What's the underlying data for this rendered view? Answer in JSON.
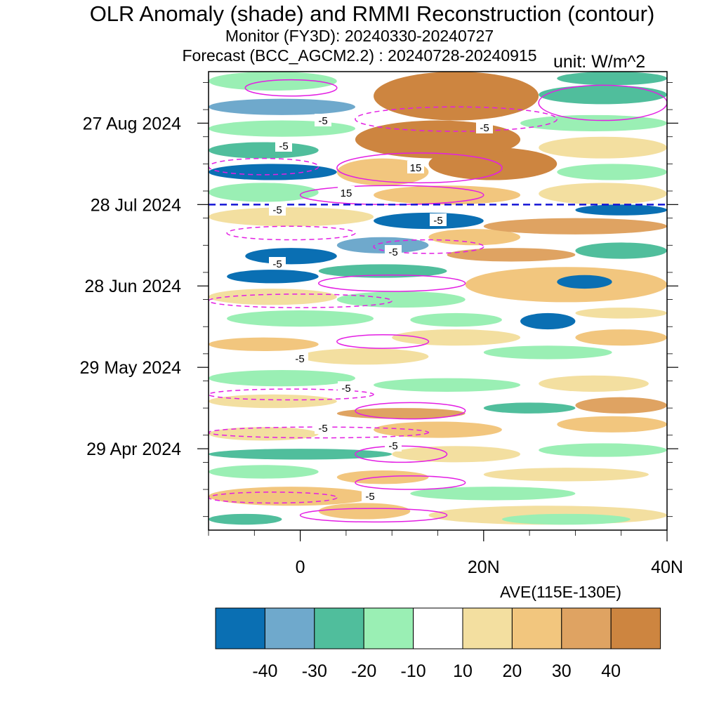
{
  "header": {
    "title": "OLR Anomaly (shade) and RMMI Reconstruction (contour)",
    "monitor": "Monitor (FY3D): 20240330-20240727",
    "forecast": "Forecast (BCC_AGCM2.2) : 20240728-20240915",
    "unit": "unit: W/m^2"
  },
  "footer": {
    "average": "AVE(115E-130E)"
  },
  "chart_data": {
    "type": "heatmap",
    "title": "OLR Anomaly (shade) and RMMI Reconstruction (contour)",
    "xlabel": "",
    "ylabel": "",
    "x_range": [
      "10S",
      "40N"
    ],
    "x_ticks": [
      "0",
      "20N",
      "40N"
    ],
    "y_range": [
      "2024-03-30",
      "2024-09-15"
    ],
    "y_ticks": [
      "29 Apr 2024",
      "29 May 2024",
      "28 Jun 2024",
      "28 Jul 2024",
      "27 Aug 2024"
    ],
    "forecast_start_line": "2024-07-28",
    "colorbar": {
      "levels": [
        "-40",
        "-30",
        "-20",
        "-10",
        "10",
        "20",
        "30",
        "40"
      ],
      "colors": [
        "#0a6fb3",
        "#6fa9cc",
        "#50be9c",
        "#9aefb4",
        "#ffffff",
        "#f3dfa0",
        "#f2c67e",
        "#dfa362",
        "#cd8540"
      ]
    },
    "contour_labels": [
      "-5",
      "-5",
      "-5",
      "15",
      "15",
      "-5",
      "-5",
      "-5",
      "-5",
      "-5",
      "-5",
      "-5",
      "-5",
      "-5"
    ],
    "contour_color": "#e31ee3",
    "regions": [
      {
        "x0": 14,
        "x1": 40,
        "y0": "2024-04-01",
        "y1": "2024-04-08",
        "v": 15
      },
      {
        "x0": 2,
        "x1": 12,
        "y0": "2024-04-03",
        "y1": "2024-04-09",
        "v": 20
      },
      {
        "x0": -10,
        "x1": -2,
        "y0": "2024-04-01",
        "y1": "2024-04-05",
        "v": -25
      },
      {
        "x0": 22,
        "x1": 36,
        "y0": "2024-04-01",
        "y1": "2024-04-05",
        "v": -15
      },
      {
        "x0": -10,
        "x1": 8,
        "y0": "2024-04-08",
        "y1": "2024-04-15",
        "v": 20
      },
      {
        "x0": 12,
        "x1": 30,
        "y0": "2024-04-10",
        "y1": "2024-04-15",
        "v": -15
      },
      {
        "x0": 4,
        "x1": 14,
        "y0": "2024-04-16",
        "y1": "2024-04-21",
        "v": 25
      },
      {
        "x0": -10,
        "x1": 2,
        "y0": "2024-04-18",
        "y1": "2024-04-23",
        "v": -15
      },
      {
        "x0": 20,
        "x1": 38,
        "y0": "2024-04-17",
        "y1": "2024-04-22",
        "v": 15
      },
      {
        "x0": -10,
        "x1": 10,
        "y0": "2024-04-25",
        "y1": "2024-04-29",
        "v": -25
      },
      {
        "x0": 10,
        "x1": 24,
        "y0": "2024-04-24",
        "y1": "2024-04-30",
        "v": 15
      },
      {
        "x0": 26,
        "x1": 40,
        "y0": "2024-04-26",
        "y1": "2024-05-01",
        "v": -15
      },
      {
        "x0": -10,
        "x1": 2,
        "y0": "2024-05-02",
        "y1": "2024-05-07",
        "v": 15
      },
      {
        "x0": 8,
        "x1": 22,
        "y0": "2024-05-03",
        "y1": "2024-05-09",
        "v": 22
      },
      {
        "x0": 28,
        "x1": 40,
        "y0": "2024-05-05",
        "y1": "2024-05-11",
        "v": 25
      },
      {
        "x0": 20,
        "x1": 30,
        "y0": "2024-05-12",
        "y1": "2024-05-16",
        "v": -25
      },
      {
        "x0": 4,
        "x1": 18,
        "y0": "2024-05-10",
        "y1": "2024-05-14",
        "v": 30
      },
      {
        "x0": 30,
        "x1": 40,
        "y0": "2024-05-12",
        "y1": "2024-05-18",
        "v": 35
      },
      {
        "x0": -10,
        "x1": 4,
        "y0": "2024-05-14",
        "y1": "2024-05-19",
        "v": 18
      },
      {
        "x0": 8,
        "x1": 24,
        "y0": "2024-05-20",
        "y1": "2024-05-25",
        "v": -20
      },
      {
        "x0": -10,
        "x1": 6,
        "y0": "2024-05-22",
        "y1": "2024-05-28",
        "v": -15
      },
      {
        "x0": 26,
        "x1": 38,
        "y0": "2024-05-20",
        "y1": "2024-05-26",
        "v": 15
      },
      {
        "x0": 0,
        "x1": 14,
        "y0": "2024-05-30",
        "y1": "2024-06-05",
        "v": 15
      },
      {
        "x0": 20,
        "x1": 34,
        "y0": "2024-06-01",
        "y1": "2024-06-06",
        "v": -15
      },
      {
        "x0": -10,
        "x1": 2,
        "y0": "2024-06-04",
        "y1": "2024-06-09",
        "v": 22
      },
      {
        "x0": 10,
        "x1": 24,
        "y0": "2024-06-06",
        "y1": "2024-06-12",
        "v": 15
      },
      {
        "x0": 30,
        "x1": 40,
        "y0": "2024-06-06",
        "y1": "2024-06-12",
        "v": 22
      },
      {
        "x0": -8,
        "x1": 8,
        "y0": "2024-06-13",
        "y1": "2024-06-19",
        "v": -20
      },
      {
        "x0": 24,
        "x1": 30,
        "y0": "2024-06-12",
        "y1": "2024-06-18",
        "v": -45
      },
      {
        "x0": 12,
        "x1": 22,
        "y0": "2024-06-13",
        "y1": "2024-06-18",
        "v": -15
      },
      {
        "x0": 30,
        "x1": 40,
        "y0": "2024-06-16",
        "y1": "2024-06-20",
        "v": 15
      },
      {
        "x0": -10,
        "x1": 4,
        "y0": "2024-06-21",
        "y1": "2024-06-27",
        "v": 15
      },
      {
        "x0": 4,
        "x1": 18,
        "y0": "2024-06-20",
        "y1": "2024-06-26",
        "v": -15
      },
      {
        "x0": 18,
        "x1": 40,
        "y0": "2024-06-22",
        "y1": "2024-07-05",
        "v": 25
      },
      {
        "x0": 28,
        "x1": 34,
        "y0": "2024-06-27",
        "y1": "2024-07-02",
        "v": -45
      },
      {
        "x0": -8,
        "x1": 2,
        "y0": "2024-06-29",
        "y1": "2024-07-04",
        "v": -45
      },
      {
        "x0": 2,
        "x1": 16,
        "y0": "2024-07-01",
        "y1": "2024-07-06",
        "v": -25
      },
      {
        "x0": 16,
        "x1": 30,
        "y0": "2024-07-07",
        "y1": "2024-07-12",
        "v": 35
      },
      {
        "x0": -6,
        "x1": 4,
        "y0": "2024-07-06",
        "y1": "2024-07-12",
        "v": -45
      },
      {
        "x0": 4,
        "x1": 14,
        "y0": "2024-07-10",
        "y1": "2024-07-16",
        "v": -35
      },
      {
        "x0": 30,
        "x1": 40,
        "y0": "2024-07-08",
        "y1": "2024-07-14",
        "v": -30
      },
      {
        "x0": 14,
        "x1": 24,
        "y0": "2024-07-13",
        "y1": "2024-07-19",
        "v": 25
      },
      {
        "x0": 8,
        "x1": 20,
        "y0": "2024-07-19",
        "y1": "2024-07-25",
        "v": -45
      },
      {
        "x0": 20,
        "x1": 40,
        "y0": "2024-07-17",
        "y1": "2024-07-23",
        "v": 30
      },
      {
        "x0": -10,
        "x1": 8,
        "y0": "2024-07-20",
        "y1": "2024-07-27",
        "v": 15
      },
      {
        "x0": 30,
        "x1": 40,
        "y0": "2024-07-24",
        "y1": "2024-07-28",
        "v": -45
      },
      {
        "x0": -10,
        "x1": 2,
        "y0": "2024-07-29",
        "y1": "2024-08-05",
        "v": -15
      },
      {
        "x0": 8,
        "x1": 24,
        "y0": "2024-07-28",
        "y1": "2024-08-04",
        "v": 25
      },
      {
        "x0": 26,
        "x1": 40,
        "y0": "2024-07-28",
        "y1": "2024-08-05",
        "v": 15
      },
      {
        "x0": -10,
        "x1": 4,
        "y0": "2024-08-06",
        "y1": "2024-08-12",
        "v": -45
      },
      {
        "x0": 4,
        "x1": 14,
        "y0": "2024-08-04",
        "y1": "2024-08-14",
        "v": 25
      },
      {
        "x0": 14,
        "x1": 28,
        "y0": "2024-08-06",
        "y1": "2024-08-18",
        "v": 45
      },
      {
        "x0": 28,
        "x1": 40,
        "y0": "2024-08-06",
        "y1": "2024-08-12",
        "v": -15
      },
      {
        "x0": 6,
        "x1": 24,
        "y0": "2024-08-14",
        "y1": "2024-08-28",
        "v": 45
      },
      {
        "x0": -10,
        "x1": 2,
        "y0": "2024-08-14",
        "y1": "2024-08-20",
        "v": -30
      },
      {
        "x0": 26,
        "x1": 40,
        "y0": "2024-08-14",
        "y1": "2024-08-22",
        "v": 15
      },
      {
        "x0": -10,
        "x1": 6,
        "y0": "2024-08-22",
        "y1": "2024-08-28",
        "v": -20
      },
      {
        "x0": 24,
        "x1": 40,
        "y0": "2024-08-24",
        "y1": "2024-08-30",
        "v": -20
      },
      {
        "x0": 8,
        "x1": 26,
        "y0": "2024-08-28",
        "y1": "2024-09-15",
        "v": 45
      },
      {
        "x0": -10,
        "x1": 6,
        "y0": "2024-08-30",
        "y1": "2024-09-05",
        "v": -35
      },
      {
        "x0": 26,
        "x1": 40,
        "y0": "2024-09-03",
        "y1": "2024-09-10",
        "v": -25
      },
      {
        "x0": -10,
        "x1": 4,
        "y0": "2024-09-08",
        "y1": "2024-09-15",
        "v": -15
      },
      {
        "x0": 28,
        "x1": 40,
        "y0": "2024-09-10",
        "y1": "2024-09-15",
        "v": -30
      }
    ],
    "contours": [
      {
        "x0": 0,
        "x1": 16,
        "y0": "2024-04-02",
        "y1": "2024-04-07",
        "dash": false
      },
      {
        "x0": 6,
        "x1": 18,
        "y0": "2024-04-14",
        "y1": "2024-04-19",
        "dash": false
      },
      {
        "x0": -10,
        "x1": 4,
        "y0": "2024-04-09",
        "y1": "2024-04-13",
        "dash": true
      },
      {
        "x0": 6,
        "x1": 16,
        "y0": "2024-04-24",
        "y1": "2024-04-30",
        "dash": false
      },
      {
        "x0": -10,
        "x1": 14,
        "y0": "2024-05-03",
        "y1": "2024-05-07",
        "dash": true
      },
      {
        "x0": 6,
        "x1": 18,
        "y0": "2024-05-10",
        "y1": "2024-05-16",
        "dash": false
      },
      {
        "x0": -10,
        "x1": 8,
        "y0": "2024-05-17",
        "y1": "2024-05-21",
        "dash": true
      },
      {
        "x0": 4,
        "x1": 14,
        "y0": "2024-06-05",
        "y1": "2024-06-10",
        "dash": false
      },
      {
        "x0": -10,
        "x1": 10,
        "y0": "2024-06-20",
        "y1": "2024-06-25",
        "dash": true
      },
      {
        "x0": 2,
        "x1": 18,
        "y0": "2024-06-26",
        "y1": "2024-07-02",
        "dash": false
      },
      {
        "x0": 8,
        "x1": 20,
        "y0": "2024-07-10",
        "y1": "2024-07-15",
        "dash": true
      },
      {
        "x0": -8,
        "x1": 6,
        "y0": "2024-07-15",
        "y1": "2024-07-20",
        "dash": true
      },
      {
        "x0": 0,
        "x1": 20,
        "y0": "2024-07-28",
        "y1": "2024-08-04",
        "dash": false
      },
      {
        "x0": 4,
        "x1": 22,
        "y0": "2024-08-05",
        "y1": "2024-08-16",
        "dash": false
      },
      {
        "x0": -10,
        "x1": 2,
        "y0": "2024-08-08",
        "y1": "2024-08-14",
        "dash": true
      },
      {
        "x0": 6,
        "x1": 28,
        "y0": "2024-08-24",
        "y1": "2024-09-02",
        "dash": true
      },
      {
        "x0": 26,
        "x1": 40,
        "y0": "2024-08-28",
        "y1": "2024-09-10",
        "dash": false
      },
      {
        "x0": -6,
        "x1": 4,
        "y0": "2024-09-06",
        "y1": "2024-09-12",
        "dash": false
      }
    ]
  }
}
